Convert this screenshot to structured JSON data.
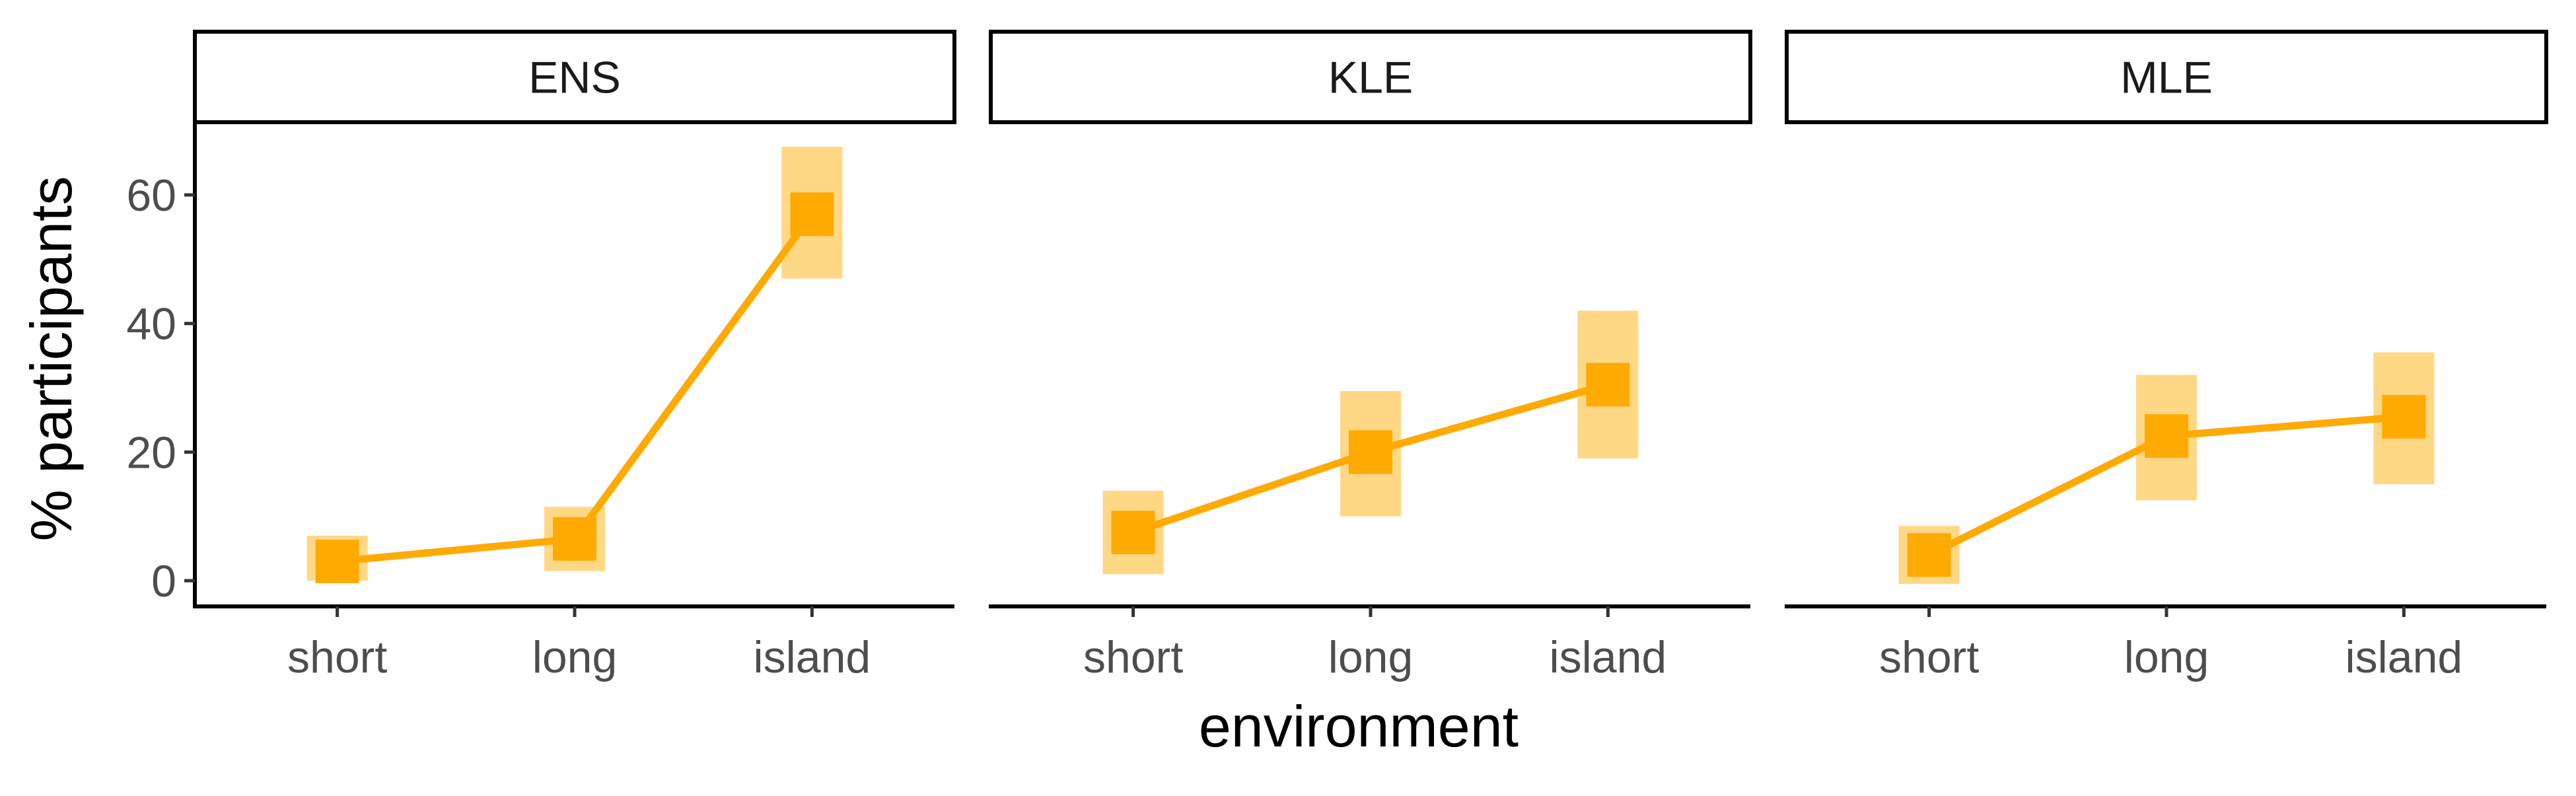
{
  "chart_data": {
    "type": "line",
    "xlabel": "environment",
    "ylabel": "% participants",
    "categories": [
      "short",
      "long",
      "island"
    ],
    "ylim": [
      -4,
      71
    ],
    "yticks": [
      0,
      20,
      40,
      60
    ],
    "grid": false,
    "legend": "none",
    "colors": {
      "line": "#FFAA00",
      "ribbon": "#FFD680",
      "frame": "#000000"
    },
    "panels": [
      {
        "strip": "ENS",
        "values": [
          3.0,
          6.5,
          57.0
        ],
        "ci_low": [
          0.0,
          1.5,
          47.0
        ],
        "ci_high": [
          7.0,
          11.5,
          67.5
        ]
      },
      {
        "strip": "KLE",
        "values": [
          7.5,
          20.0,
          30.5
        ],
        "ci_low": [
          1.0,
          10.0,
          19.0
        ],
        "ci_high": [
          14.0,
          29.5,
          42.0
        ]
      },
      {
        "strip": "MLE",
        "values": [
          4.0,
          22.5,
          25.5
        ],
        "ci_low": [
          -0.5,
          12.5,
          15.0
        ],
        "ci_high": [
          8.5,
          32.0,
          35.5
        ]
      }
    ]
  }
}
